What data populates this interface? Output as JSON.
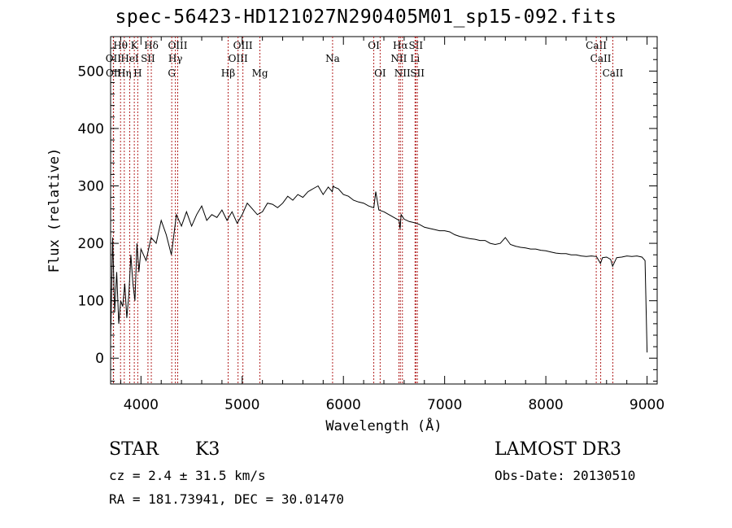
{
  "chart_data": {
    "type": "line",
    "title": "spec-56423-HD121027N290405M01_sp15-092.fits",
    "xlabel": "Wavelength (Å)",
    "ylabel": "Flux (relative)",
    "xlim": [
      3700,
      9100
    ],
    "ylim": [
      -45,
      560
    ],
    "xticks": [
      4000,
      5000,
      6000,
      7000,
      8000,
      9000
    ],
    "yticks": [
      0,
      100,
      200,
      300,
      400,
      500
    ],
    "series": [
      {
        "name": "spectrum",
        "x": [
          3700,
          3720,
          3740,
          3760,
          3780,
          3800,
          3820,
          3840,
          3860,
          3880,
          3900,
          3920,
          3940,
          3960,
          3980,
          4000,
          4050,
          4100,
          4150,
          4200,
          4250,
          4300,
          4350,
          4400,
          4450,
          4500,
          4550,
          4600,
          4650,
          4700,
          4750,
          4800,
          4850,
          4900,
          4950,
          5000,
          5050,
          5100,
          5150,
          5200,
          5250,
          5300,
          5350,
          5400,
          5450,
          5500,
          5550,
          5600,
          5650,
          5700,
          5750,
          5800,
          5850,
          5890,
          5900,
          5910,
          5950,
          6000,
          6050,
          6100,
          6150,
          6200,
          6250,
          6300,
          6320,
          6350,
          6400,
          6450,
          6500,
          6550,
          6560,
          6570,
          6600,
          6650,
          6700,
          6750,
          6800,
          6850,
          6900,
          6950,
          7000,
          7050,
          7100,
          7150,
          7200,
          7250,
          7300,
          7350,
          7400,
          7450,
          7500,
          7550,
          7600,
          7650,
          7700,
          7750,
          7800,
          7850,
          7900,
          7950,
          8000,
          8050,
          8100,
          8150,
          8200,
          8250,
          8300,
          8350,
          8400,
          8450,
          8500,
          8540,
          8560,
          8600,
          8640,
          8660,
          8700,
          8750,
          8800,
          8850,
          8900,
          8950,
          8980,
          9000
        ],
        "y": [
          30,
          210,
          80,
          150,
          60,
          100,
          90,
          130,
          70,
          110,
          180,
          130,
          100,
          200,
          150,
          190,
          170,
          210,
          200,
          240,
          215,
          180,
          250,
          230,
          255,
          230,
          250,
          265,
          240,
          250,
          245,
          258,
          240,
          255,
          235,
          250,
          270,
          260,
          250,
          255,
          270,
          268,
          262,
          270,
          282,
          275,
          285,
          280,
          290,
          295,
          300,
          285,
          298,
          290,
          300,
          298,
          295,
          285,
          282,
          275,
          272,
          270,
          265,
          262,
          290,
          258,
          255,
          250,
          245,
          240,
          225,
          250,
          242,
          238,
          236,
          233,
          228,
          226,
          224,
          222,
          222,
          220,
          215,
          212,
          210,
          208,
          207,
          205,
          205,
          200,
          198,
          200,
          210,
          198,
          195,
          193,
          192,
          190,
          190,
          188,
          187,
          185,
          183,
          182,
          182,
          180,
          180,
          178,
          177,
          178,
          177,
          165,
          175,
          176,
          172,
          160,
          175,
          176,
          178,
          177,
          178,
          176,
          170,
          10
        ]
      }
    ],
    "lines": [
      {
        "name": "Hθ",
        "wave": 3798,
        "row": 0
      },
      {
        "name": "OII",
        "wave": 3727,
        "row": 1
      },
      {
        "name": "OII",
        "wave": 3729,
        "row": 2
      },
      {
        "name": "HeI",
        "wave": 3889,
        "row": 1
      },
      {
        "name": "Hη",
        "wave": 3835,
        "row": 2
      },
      {
        "name": "K",
        "wave": 3934,
        "row": 0
      },
      {
        "name": "H",
        "wave": 3968,
        "row": 2
      },
      {
        "name": "SII",
        "wave": 4069,
        "row": 1
      },
      {
        "name": "Hδ",
        "wave": 4102,
        "row": 0
      },
      {
        "name": "G",
        "wave": 4304,
        "row": 2
      },
      {
        "name": "Hγ",
        "wave": 4340,
        "row": 1
      },
      {
        "name": "OIII",
        "wave": 4363,
        "row": 0
      },
      {
        "name": "Hβ",
        "wave": 4861,
        "row": 2
      },
      {
        "name": "OIII",
        "wave": 4959,
        "row": 1
      },
      {
        "name": "OIII",
        "wave": 5007,
        "row": 0
      },
      {
        "name": "Mg",
        "wave": 5175,
        "row": 2
      },
      {
        "name": "Na",
        "wave": 5893,
        "row": 1
      },
      {
        "name": "OI",
        "wave": 6300,
        "row": 0
      },
      {
        "name": "OI",
        "wave": 6363,
        "row": 2
      },
      {
        "name": "NII",
        "wave": 6548,
        "row": 1
      },
      {
        "name": "Hα",
        "wave": 6563,
        "row": 0
      },
      {
        "name": "NII",
        "wave": 6583,
        "row": 2
      },
      {
        "name": "Li",
        "wave": 6708,
        "row": 1
      },
      {
        "name": "SII",
        "wave": 6716,
        "row": 0
      },
      {
        "name": "SII",
        "wave": 6731,
        "row": 2
      },
      {
        "name": "CaII",
        "wave": 8498,
        "row": 0
      },
      {
        "name": "CaII",
        "wave": 8542,
        "row": 1
      },
      {
        "name": "CaII",
        "wave": 8662,
        "row": 2
      }
    ]
  },
  "info": {
    "class": "STAR",
    "subclass": "K3",
    "redshift": "cz = 2.4 ± 31.5 km/s",
    "coords": "RA = 181.73941, DEC =  30.01470",
    "survey": "LAMOST DR3",
    "obs_date": "Obs-Date: 20130510"
  },
  "colors": {
    "line_marker": "#b22222",
    "spectrum": "#000000"
  }
}
